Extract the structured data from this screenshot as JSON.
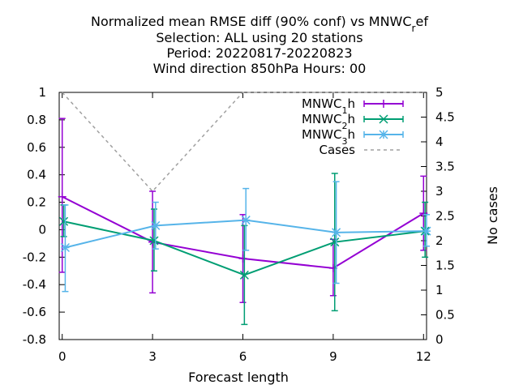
{
  "chart_data": {
    "type": "line",
    "title_lines": [
      "Normalized mean RMSE diff (90% conf) vs MNWC",
      "Selection: ALL using    20 stations",
      "Period: 20220817-20220823",
      "Wind direction 850hPa   Hours:  00"
    ],
    "title_sub": "r",
    "title_tail": "ef",
    "xlabel": "Forecast length",
    "ylabel_right": "No cases",
    "x_ticks": [
      "0",
      "3",
      "6",
      "9",
      "12"
    ],
    "y_ticks": [
      "-0.8",
      "-0.6",
      "-0.4",
      "-0.2",
      "0",
      "0.2",
      "0.4",
      "0.6",
      "0.8",
      "1"
    ],
    "y2_ticks": [
      "0",
      "0.5",
      "1",
      "1.5",
      "2",
      "2.5",
      "3",
      "3.5",
      "4",
      "4.5",
      "5"
    ],
    "xlim": [
      -0.1,
      12.1
    ],
    "ylim": [
      -0.8,
      1.0
    ],
    "y2lim": [
      0,
      5
    ],
    "series": [
      {
        "name": "MNWC",
        "sub": "1",
        "suffix": "h",
        "color": "#9400d3",
        "marker": "plus",
        "x": [
          0,
          3,
          6,
          9,
          12
        ],
        "y": [
          0.24,
          -0.09,
          -0.21,
          -0.28,
          0.12
        ],
        "err_low": [
          -0.31,
          -0.46,
          -0.53,
          -0.48,
          -0.15
        ],
        "err_high": [
          0.81,
          0.28,
          0.11,
          -0.07,
          0.39
        ]
      },
      {
        "name": "MNWC",
        "sub": "2",
        "suffix": "h",
        "color": "#009e73",
        "marker": "cross",
        "x": [
          0.05,
          3.05,
          6.05,
          9.05,
          12.05
        ],
        "y": [
          0.06,
          -0.08,
          -0.33,
          -0.09,
          -0.01
        ],
        "err_low": [
          -0.05,
          -0.3,
          -0.69,
          -0.59,
          -0.2
        ],
        "err_high": [
          0.18,
          0.15,
          0.03,
          0.41,
          0.2
        ]
      },
      {
        "name": "MNWC",
        "sub": "3",
        "suffix": "h",
        "color": "#56b4e9",
        "marker": "star",
        "x": [
          0.1,
          3.1,
          6.1,
          9.1,
          12.1
        ],
        "y": [
          -0.13,
          0.03,
          0.07,
          -0.02,
          -0.01
        ],
        "err_low": [
          -0.45,
          -0.14,
          -0.15,
          -0.39,
          -0.12
        ],
        "err_high": [
          0.18,
          0.2,
          0.3,
          0.35,
          0.11
        ]
      }
    ],
    "cases": {
      "name": "Cases",
      "color": "#a0a0a0",
      "x": [
        0,
        3,
        6,
        9,
        12
      ],
      "y": [
        5,
        3,
        5,
        5,
        5
      ]
    },
    "legend_position": "top-right",
    "grid": false
  }
}
